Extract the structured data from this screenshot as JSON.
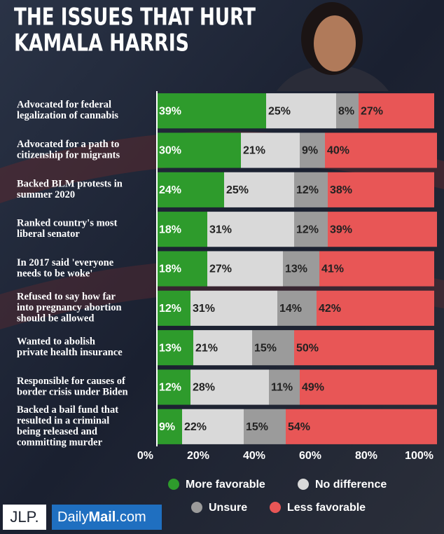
{
  "chart_data": {
    "type": "stacked-bar-horizontal",
    "title": [
      "THE ISSUES THAT HURT",
      "KAMALA HARRIS"
    ],
    "categories": [
      [
        "Advocated for federal",
        "legalization of cannabis"
      ],
      [
        "Advocated for a path to",
        "citizenship for migrants"
      ],
      [
        "Backed BLM protests in",
        "summer 2020"
      ],
      [
        "Ranked country's most",
        "liberal senator"
      ],
      [
        "In 2017 said 'everyone",
        "needs to be woke'"
      ],
      [
        "Refused to say how far",
        "into pregnancy abortion",
        "should be allowed"
      ],
      [
        "Wanted to abolish",
        "private health insurance"
      ],
      [
        "Responsible for causes of",
        "border crisis under Biden"
      ],
      [
        "Backed a bail fund that",
        "resulted in a criminal",
        "being released and",
        "committing murder"
      ]
    ],
    "series": [
      {
        "name": "More favorable",
        "color": "#2e9b2c",
        "label_color": "#ffffff",
        "values": [
          39,
          30,
          24,
          18,
          18,
          12,
          13,
          12,
          9
        ],
        "value_labels": [
          "39%",
          "30%",
          "24%",
          "18%",
          "18%",
          "12%",
          "13%",
          "12%",
          "9%"
        ]
      },
      {
        "name": "No difference",
        "color": "#d9d9d9",
        "label_color": "#222222",
        "values": [
          25,
          21,
          25,
          31,
          27,
          31,
          21,
          28,
          22
        ],
        "value_labels": [
          "25%",
          "21%",
          "25%",
          "31%",
          "27%",
          "31%",
          "21%",
          "28%",
          "22%"
        ]
      },
      {
        "name": "Unsure",
        "color": "#9b9b9b",
        "label_color": "#222222",
        "values": [
          8,
          9,
          12,
          12,
          13,
          14,
          15,
          11,
          15
        ],
        "value_labels": [
          "8%",
          "9%",
          "12%",
          "12%",
          "13%",
          "14%",
          "15%",
          "11%",
          "15%"
        ]
      },
      {
        "name": "Less favorable",
        "color": "#e85656",
        "label_color": "#222222",
        "values": [
          27,
          40,
          38,
          39,
          41,
          42,
          50,
          49,
          54
        ],
        "value_labels": [
          "27%",
          "40%",
          "38%",
          "39%",
          "41%",
          "42%",
          "50%",
          "49%",
          "54%"
        ]
      }
    ],
    "xlim": [
      0,
      100
    ],
    "xticks": [
      {
        "value": 0,
        "label": "0%"
      },
      {
        "value": 20,
        "label": "20%"
      },
      {
        "value": 40,
        "label": "40%"
      },
      {
        "value": 60,
        "label": "60%"
      },
      {
        "value": 80,
        "label": "80%"
      },
      {
        "value": 100,
        "label": "100%"
      }
    ],
    "legend": "bottom"
  },
  "logos": {
    "jlp": "JLP.",
    "dailymail": [
      "Daily",
      "Mail",
      ".com"
    ]
  }
}
